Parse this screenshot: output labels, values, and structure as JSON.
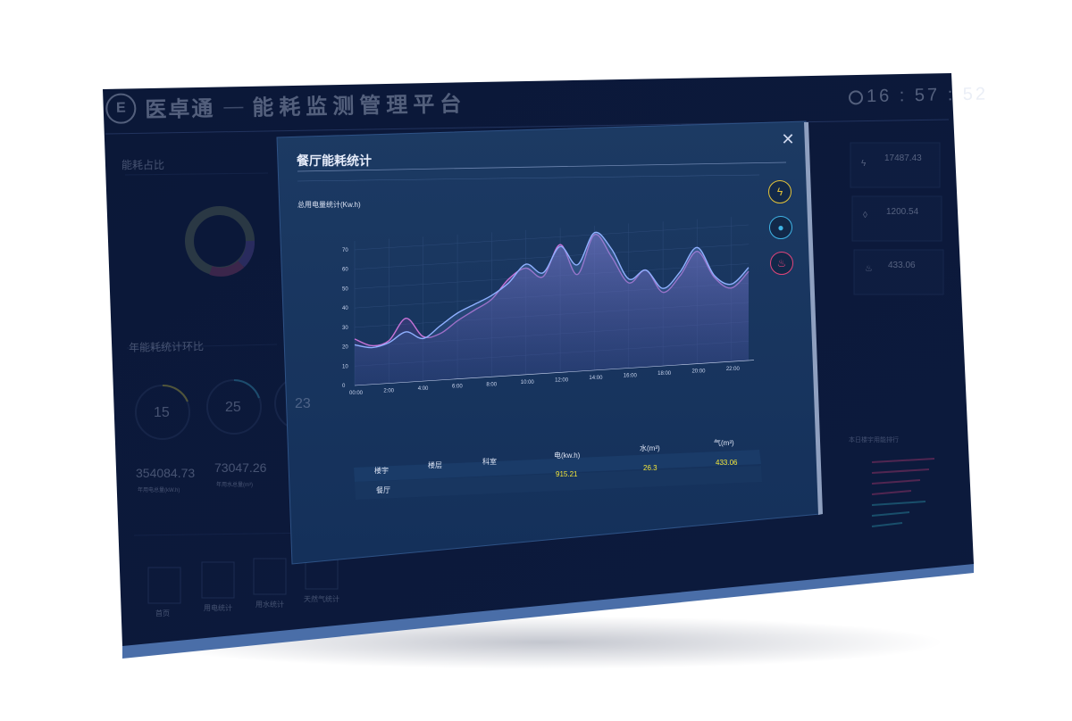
{
  "header": {
    "brand_name": "医卓通",
    "separator": "—",
    "platform_title": "能耗监测管理平台",
    "clock": "16 : 57 : 52"
  },
  "left_panel": {
    "share_title": "能耗占比",
    "year_compare_title": "年能耗统计环比",
    "gauges": [
      "15",
      "25",
      "23"
    ],
    "gauge_unit": "%",
    "totals": [
      "354084.73",
      "73047.26"
    ],
    "total_labels": [
      "年用电总量(kW.h)",
      "年用水总量(m³)"
    ]
  },
  "right_panel": {
    "cards": [
      {
        "value": "17487.43",
        "icon": "lightning-icon"
      },
      {
        "value": "1200.54",
        "icon": "water-drop-icon"
      },
      {
        "value": "433.06",
        "icon": "flame-icon"
      }
    ],
    "ranking_title": "本日楼宇用能排行"
  },
  "bottom_nav": {
    "items": [
      "首页",
      "用电统计",
      "用水统计",
      "天然气统计"
    ]
  },
  "modal": {
    "title": "餐厅能耗统计",
    "chart_subtitle": "总用电量统计(Kw.h)",
    "side_buttons": [
      {
        "icon": "lightning-icon",
        "color": "#e3c33a"
      },
      {
        "icon": "water-drop-icon",
        "color": "#3fb4e6"
      },
      {
        "icon": "flame-icon",
        "color": "#e0457b"
      }
    ],
    "table": {
      "headers": [
        "楼宇",
        "楼层",
        "科室",
        "电(kw.h)",
        "水(m³)",
        "气(m³)"
      ],
      "rows": [
        {
          "building": "餐厅",
          "floor": "",
          "dept": "",
          "electric": "915.21",
          "water": "26.3",
          "gas": "433.06"
        }
      ]
    }
  },
  "chart_data": {
    "type": "area",
    "title": "",
    "ylabel": "总用电量统计(Kw.h)",
    "ylim": [
      0,
      70
    ],
    "yticks": [
      "0",
      "10",
      "20",
      "30",
      "40",
      "50",
      "60",
      "70"
    ],
    "xticks": [
      "00:00",
      "2:00",
      "4:00",
      "6:00",
      "8:00",
      "10:00",
      "12:00",
      "14:00",
      "16:00",
      "18:00",
      "20:00",
      "22:00"
    ],
    "series": [
      {
        "color": "#8fb0ff",
        "x": [
          0,
          1,
          2,
          3,
          4,
          5,
          6,
          7,
          8,
          9,
          10,
          11,
          12,
          13,
          14,
          15,
          16,
          17,
          18,
          19,
          20,
          21,
          22,
          23
        ],
        "values": [
          21,
          19,
          21,
          26,
          22,
          28,
          34,
          38,
          42,
          48,
          57,
          52,
          65,
          55,
          71,
          62,
          46,
          50,
          40,
          48,
          60,
          45,
          40,
          48
        ]
      },
      {
        "color": "#c874d8",
        "x": [
          0,
          1,
          2,
          3,
          4,
          5,
          6,
          7,
          8,
          9,
          10,
          11,
          12,
          13,
          14,
          15,
          16,
          17,
          18,
          19,
          20,
          21,
          22,
          23
        ],
        "values": [
          24,
          20,
          22,
          33,
          23,
          24,
          30,
          35,
          40,
          50,
          55,
          50,
          66,
          50,
          70,
          58,
          44,
          50,
          38,
          46,
          58,
          44,
          38,
          46
        ]
      }
    ]
  }
}
